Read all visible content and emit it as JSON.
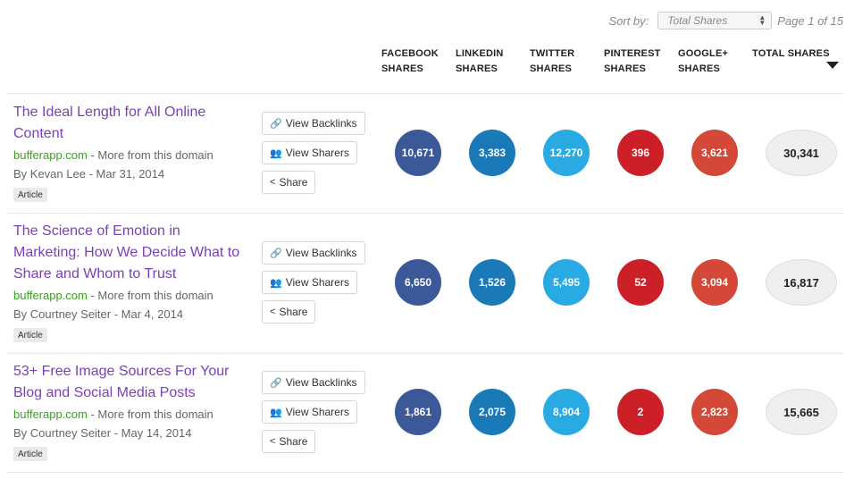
{
  "sort": {
    "label": "Sort by:",
    "selected": "Total Shares",
    "page_info": "Page 1 of 15"
  },
  "columns": {
    "facebook": [
      "FACEBOOK",
      "SHARES"
    ],
    "linkedin": [
      "LINKEDIN",
      "SHARES"
    ],
    "twitter": [
      "TWITTER",
      "SHARES"
    ],
    "pinterest": [
      "PINTEREST",
      "SHARES"
    ],
    "googleplus": [
      "GOOGLE+",
      "SHARES"
    ],
    "total": [
      "TOTAL SHARES"
    ]
  },
  "buttons": {
    "backlinks": "View Backlinks",
    "sharers": "View Sharers",
    "share": "Share"
  },
  "colors": {
    "facebook": "#3b5998",
    "linkedin": "#1a7ab8",
    "twitter": "#2aaae2",
    "pinterest": "#cb2027",
    "googleplus": "#d34836",
    "title": "#7b3fb6",
    "domain": "#3aa020"
  },
  "rows": [
    {
      "title": "The Ideal Length for All Online Content",
      "domain": "bufferapp.com",
      "more": " - More from this domain",
      "author": "By Kevan Lee",
      "date": " - Mar 31, 2014",
      "badge": "Article",
      "facebook": "10,671",
      "linkedin": "3,383",
      "twitter": "12,270",
      "pinterest": "396",
      "googleplus": "3,621",
      "total": "30,341"
    },
    {
      "title": "The Science of Emotion in Marketing: How We Decide What to Share and Whom to Trust",
      "domain": "bufferapp.com",
      "more": " - More from this domain",
      "author": "By Courtney Seiter",
      "date": " - Mar 4, 2014",
      "badge": "Article",
      "facebook": "6,650",
      "linkedin": "1,526",
      "twitter": "5,495",
      "pinterest": "52",
      "googleplus": "3,094",
      "total": "16,817"
    },
    {
      "title": "53+ Free Image Sources For Your Blog and Social Media Posts",
      "domain": "bufferapp.com",
      "more": " - More from this domain",
      "author": "By Courtney Seiter",
      "date": " - May 14, 2014",
      "badge": "Article",
      "facebook": "1,861",
      "linkedin": "2,075",
      "twitter": "8,904",
      "pinterest": "2",
      "googleplus": "2,823",
      "total": "15,665"
    }
  ]
}
